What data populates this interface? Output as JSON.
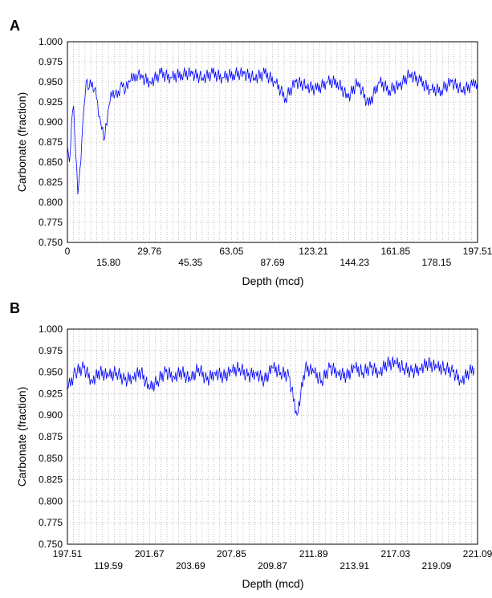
{
  "figure": {
    "panels": [
      {
        "letter": "A",
        "ylabel": "Carbonate (fraction)",
        "xlabel": "Depth (mcd)",
        "y_ticks": [
          "1.000",
          "0.975",
          "0.950",
          "0.925",
          "0.900",
          "0.875",
          "0.850",
          "0.825",
          "0.800",
          "0.775",
          "0.750"
        ],
        "x_ticks_top_row": [
          "0",
          "29.76",
          "63.05",
          "123.21",
          "161.85",
          "197.51"
        ],
        "x_ticks_bottom_row": [
          "15.80",
          "45.35",
          "87.69",
          "144.23",
          "178.15"
        ]
      },
      {
        "letter": "B",
        "ylabel": "Carbonate (fraction)",
        "xlabel": "Depth (mcd)",
        "y_ticks": [
          "1.000",
          "0.975",
          "0.950",
          "0.925",
          "0.900",
          "0.875",
          "0.850",
          "0.825",
          "0.800",
          "0.775",
          "0.750"
        ],
        "x_ticks_top_row": [
          "197.51",
          "201.67",
          "207.85",
          "211.89",
          "217.03",
          "221.09"
        ],
        "x_ticks_bottom_row": [
          "119.59",
          "203.69",
          "209.87",
          "213.91",
          "219.09"
        ]
      }
    ],
    "series_color": "#0000ff"
  },
  "chart_data": [
    {
      "type": "line",
      "title": "",
      "xlabel": "Depth (mcd)",
      "ylabel": "Carbonate (fraction)",
      "ylim": [
        0.75,
        1.0
      ],
      "xlim": [
        0,
        197.51
      ],
      "grid": true,
      "x": [
        0,
        1,
        2,
        3,
        4,
        5,
        6,
        7,
        8,
        9,
        10,
        12,
        14,
        16,
        18,
        20,
        22,
        24,
        26,
        28,
        30,
        33,
        36,
        40,
        45,
        50,
        55,
        60,
        65,
        70,
        75,
        80,
        85,
        90,
        95,
        100,
        105,
        110,
        115,
        120,
        125,
        130,
        135,
        140,
        145,
        150,
        155,
        160,
        165,
        170,
        175,
        180,
        185,
        190,
        195,
        197.51
      ],
      "series": [
        {
          "values": [
            0.87,
            0.85,
            0.9,
            0.92,
            0.86,
            0.81,
            0.84,
            0.88,
            0.92,
            0.95,
            0.94,
            0.95,
            0.93,
            0.9,
            0.88,
            0.92,
            0.94,
            0.93,
            0.95,
            0.94,
            0.95,
            0.96,
            0.955,
            0.95,
            0.96,
            0.955,
            0.96,
            0.96,
            0.955,
            0.96,
            0.955,
            0.96,
            0.96,
            0.955,
            0.96,
            0.95,
            0.93,
            0.95,
            0.945,
            0.94,
            0.95,
            0.95,
            0.93,
            0.95,
            0.92,
            0.95,
            0.94,
            0.945,
            0.96,
            0.95,
            0.94,
            0.94,
            0.95,
            0.94,
            0.945,
            0.95
          ]
        }
      ]
    },
    {
      "type": "line",
      "title": "",
      "xlabel": "Depth (mcd)",
      "ylabel": "Carbonate (fraction)",
      "ylim": [
        0.75,
        1.0
      ],
      "xlim": [
        197.51,
        222.5
      ],
      "grid": true,
      "x": [
        197.51,
        198.0,
        198.5,
        199.0,
        199.5,
        200.0,
        200.5,
        201.0,
        201.5,
        202.0,
        202.5,
        203.0,
        203.5,
        204.0,
        204.5,
        205.0,
        205.5,
        206.0,
        206.5,
        207.0,
        207.5,
        208.0,
        208.5,
        209.0,
        209.5,
        210.0,
        210.5,
        211.0,
        211.5,
        212.0,
        212.5,
        213.0,
        213.5,
        214.0,
        214.5,
        215.0,
        215.5,
        216.0,
        216.5,
        217.0,
        217.5,
        218.0,
        218.5,
        219.0,
        219.5,
        220.0,
        220.5,
        221.0,
        221.5,
        222.0,
        222.3
      ],
      "series": [
        {
          "values": [
            0.93,
            0.95,
            0.955,
            0.94,
            0.95,
            0.945,
            0.95,
            0.94,
            0.945,
            0.95,
            0.93,
            0.94,
            0.95,
            0.945,
            0.95,
            0.94,
            0.955,
            0.94,
            0.95,
            0.945,
            0.95,
            0.955,
            0.945,
            0.95,
            0.94,
            0.955,
            0.95,
            0.945,
            0.9,
            0.955,
            0.95,
            0.94,
            0.955,
            0.95,
            0.945,
            0.955,
            0.95,
            0.955,
            0.95,
            0.96,
            0.96,
            0.955,
            0.95,
            0.955,
            0.96,
            0.955,
            0.955,
            0.95,
            0.94,
            0.95,
            0.955
          ]
        }
      ]
    }
  ]
}
